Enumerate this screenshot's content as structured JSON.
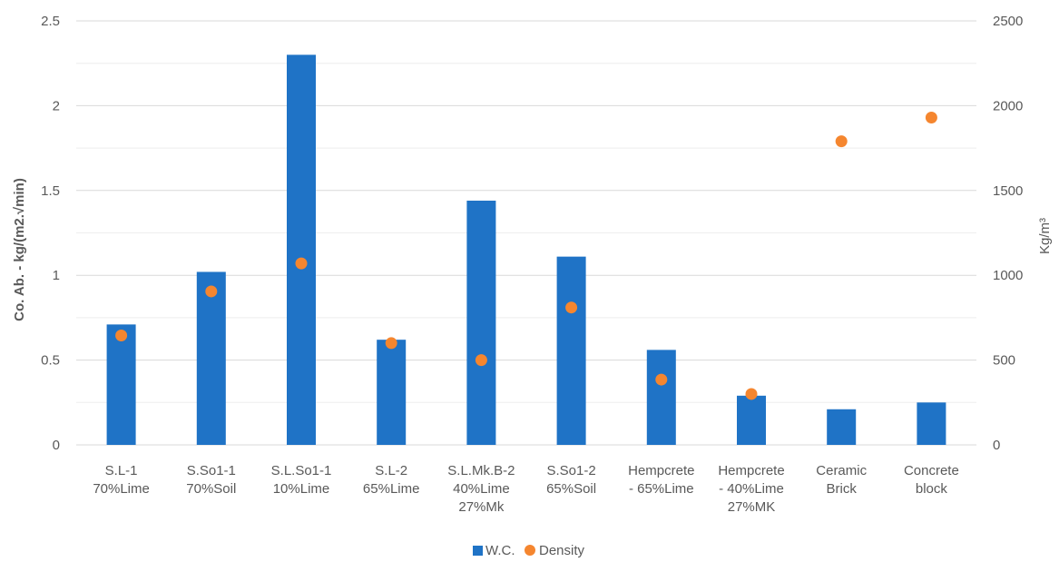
{
  "chart_data": {
    "type": "bar",
    "categories": [
      [
        "S.L-1",
        "70%Lime"
      ],
      [
        "S.So1-1",
        "70%Soil"
      ],
      [
        "S.L.So1-1",
        "10%Lime"
      ],
      [
        "S.L-2",
        "65%Lime"
      ],
      [
        "S.L.Mk.B-2",
        "40%Lime",
        "27%Mk"
      ],
      [
        "S.So1-2",
        "65%Soil"
      ],
      [
        "Hempcrete",
        "- 65%Lime"
      ],
      [
        "Hempcrete",
        "- 40%Lime",
        "27%MK"
      ],
      [
        "Ceramic",
        "Brick"
      ],
      [
        "Concrete",
        "block"
      ]
    ],
    "series": [
      {
        "name": "W.C.",
        "type": "bar",
        "axis": "left",
        "color": "#1F73C6",
        "values": [
          0.71,
          1.02,
          2.3,
          0.62,
          1.44,
          1.11,
          0.56,
          0.29,
          0.21,
          0.25
        ]
      },
      {
        "name": "Density",
        "type": "scatter",
        "axis": "right",
        "color": "#F5862F",
        "values": [
          645,
          905,
          1070,
          600,
          500,
          810,
          385,
          300,
          1790,
          1930
        ]
      }
    ],
    "ylabel": "Co. Ab. - kg/(m2.√min)",
    "y2label": "Kg/m³",
    "ylim": [
      0,
      2.5
    ],
    "y2lim": [
      0,
      2500
    ],
    "yticks": [
      "0",
      "0.5",
      "1",
      "1.5",
      "2",
      "2.5"
    ],
    "y2ticks": [
      "0",
      "500",
      "1000",
      "1500",
      "2000",
      "2500"
    ],
    "grid": true,
    "legend_position": "bottom"
  }
}
